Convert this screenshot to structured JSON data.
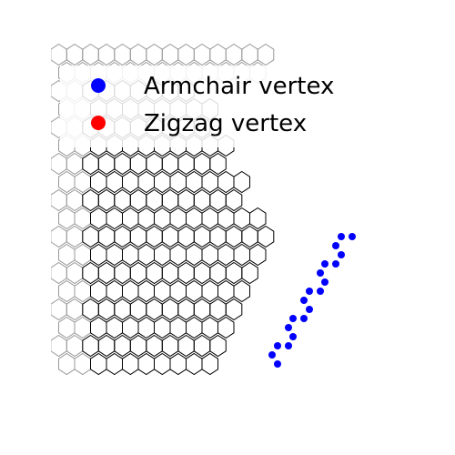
{
  "legend": {
    "items": [
      {
        "label": "Armchair vertex",
        "color": "#0000ff"
      },
      {
        "label": "Zigzag vertex",
        "color": "#ff0000"
      }
    ]
  },
  "lattice": {
    "background_cell_color": "#999999",
    "edge_cell_color": "#000000",
    "armchair_vertex_color": "#0000ff"
  }
}
